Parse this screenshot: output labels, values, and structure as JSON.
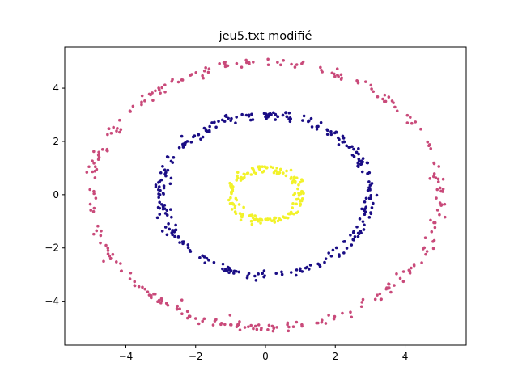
{
  "chart_data": {
    "type": "scatter",
    "title": "jeu5.txt modifié",
    "xlabel": "",
    "ylabel": "",
    "xlim": [
      -5.75,
      5.75
    ],
    "ylim": [
      -5.65,
      5.55
    ],
    "xticks": [
      -4,
      -2,
      0,
      2,
      4
    ],
    "yticks": [
      -4,
      -2,
      0,
      2,
      4
    ],
    "xtick_labels": [
      "−4",
      "−2",
      "0",
      "2",
      "4"
    ],
    "ytick_labels": [
      "−4",
      "−2",
      "0",
      "2",
      "4"
    ],
    "grid": false,
    "series": [
      {
        "color": "#c94a7a",
        "ring_radius": 5.0,
        "ring_center": [
          0,
          0
        ],
        "point_count": 300
      },
      {
        "color": "#1a0d85",
        "ring_radius": 3.0,
        "ring_center": [
          0,
          0
        ],
        "point_count": 300
      },
      {
        "color": "#f2f22a",
        "ring_radius": 1.0,
        "ring_center": [
          0,
          0
        ],
        "point_count": 150
      }
    ]
  }
}
